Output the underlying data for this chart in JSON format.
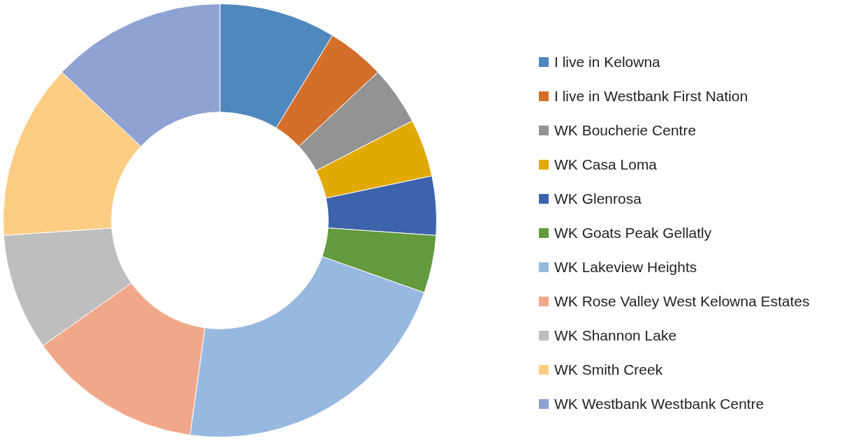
{
  "chart_data": {
    "type": "donut",
    "legend": "right",
    "categories": [
      "I live in Kelowna",
      "I live in Westbank First Nation",
      "WK Boucherie Centre",
      "WK Casa Loma",
      "WK Glenrosa",
      "WK Goats Peak Gellatly",
      "WK Lakeview Heights",
      "WK Rose Valley West Kelowna Estates",
      "WK Shannon Lake",
      "WK Smith Creek",
      "WK Westbank Westbank Centre"
    ],
    "values": [
      8.7,
      4.3,
      4.4,
      4.3,
      4.4,
      4.3,
      21.8,
      13.0,
      8.7,
      13.1,
      13.0
    ],
    "colors": [
      "#4f88bd",
      "#d36f2b",
      "#939393",
      "#e1a904",
      "#3e63ad",
      "#629a3d",
      "#98b9df",
      "#f1a88a",
      "#bebebe",
      "#fdcd84",
      "#8fa2d4"
    ]
  }
}
